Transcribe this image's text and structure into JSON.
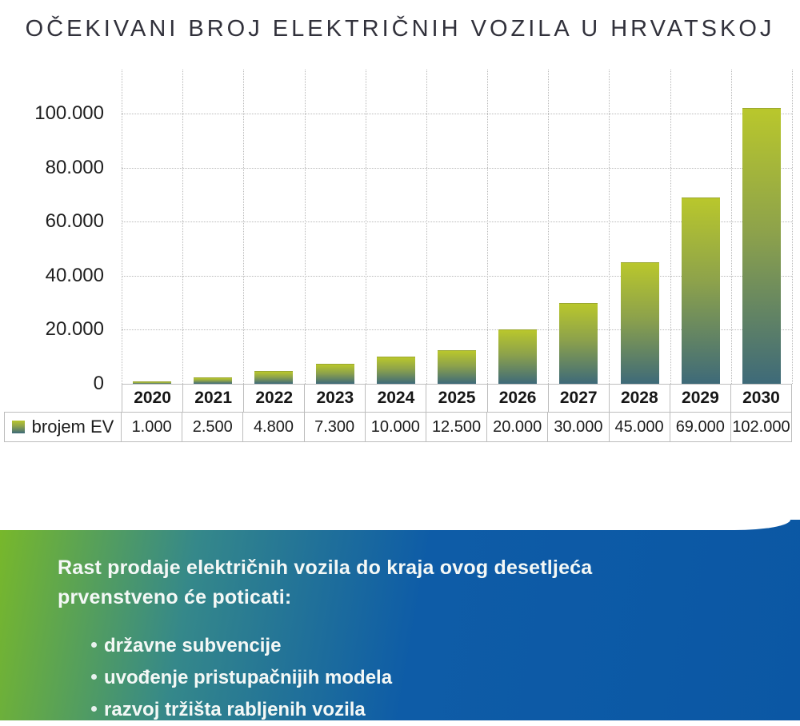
{
  "title": "OČEKIVANI BROJ ELEKTRIČNIH VOZILA U HRVATSKOJ",
  "chart_data": {
    "type": "bar",
    "title": "OČEKIVANI BROJ ELEKTRIČNIH VOZILA U HRVATSKOJ",
    "categories": [
      "2020",
      "2021",
      "2022",
      "2023",
      "2024",
      "2025",
      "2026",
      "2027",
      "2028",
      "2029",
      "2030"
    ],
    "series": [
      {
        "name": "brojem EV",
        "values": [
          1000,
          2500,
          4800,
          7300,
          10000,
          12500,
          20000,
          30000,
          45000,
          69000,
          102000
        ],
        "value_labels": [
          "1.000",
          "2.500",
          "4.800",
          "7.300",
          "10.000",
          "12.500",
          "20.000",
          "30.000",
          "45.000",
          "69.000",
          "102.000"
        ]
      }
    ],
    "xlabel": "",
    "ylabel": "",
    "ylim": [
      0,
      116000
    ],
    "yticks": [
      0,
      20000,
      40000,
      60000,
      80000,
      100000
    ],
    "ytick_labels": [
      "0",
      "20.000",
      "40.000",
      "60.000",
      "80.000",
      "100.000"
    ],
    "grid": true,
    "legend_position": "table-left",
    "bar_gradient_top": "#b9c72c",
    "bar_gradient_bottom": "#3e6a79"
  },
  "table": {
    "legend_label": "brojem EV"
  },
  "callout": {
    "heading_line1": "Rast prodaje električnih vozila do kraja ovog desetljeća",
    "heading_line2": "prvenstveno će poticati:",
    "bullets": [
      "državne subvencije",
      "uvođenje pristupačnijih modela",
      "razvoj tržišta rabljenih vozila"
    ],
    "gradient_left": "#78b82a",
    "gradient_right": "#0b57a4",
    "text_color": "#ffffff"
  }
}
